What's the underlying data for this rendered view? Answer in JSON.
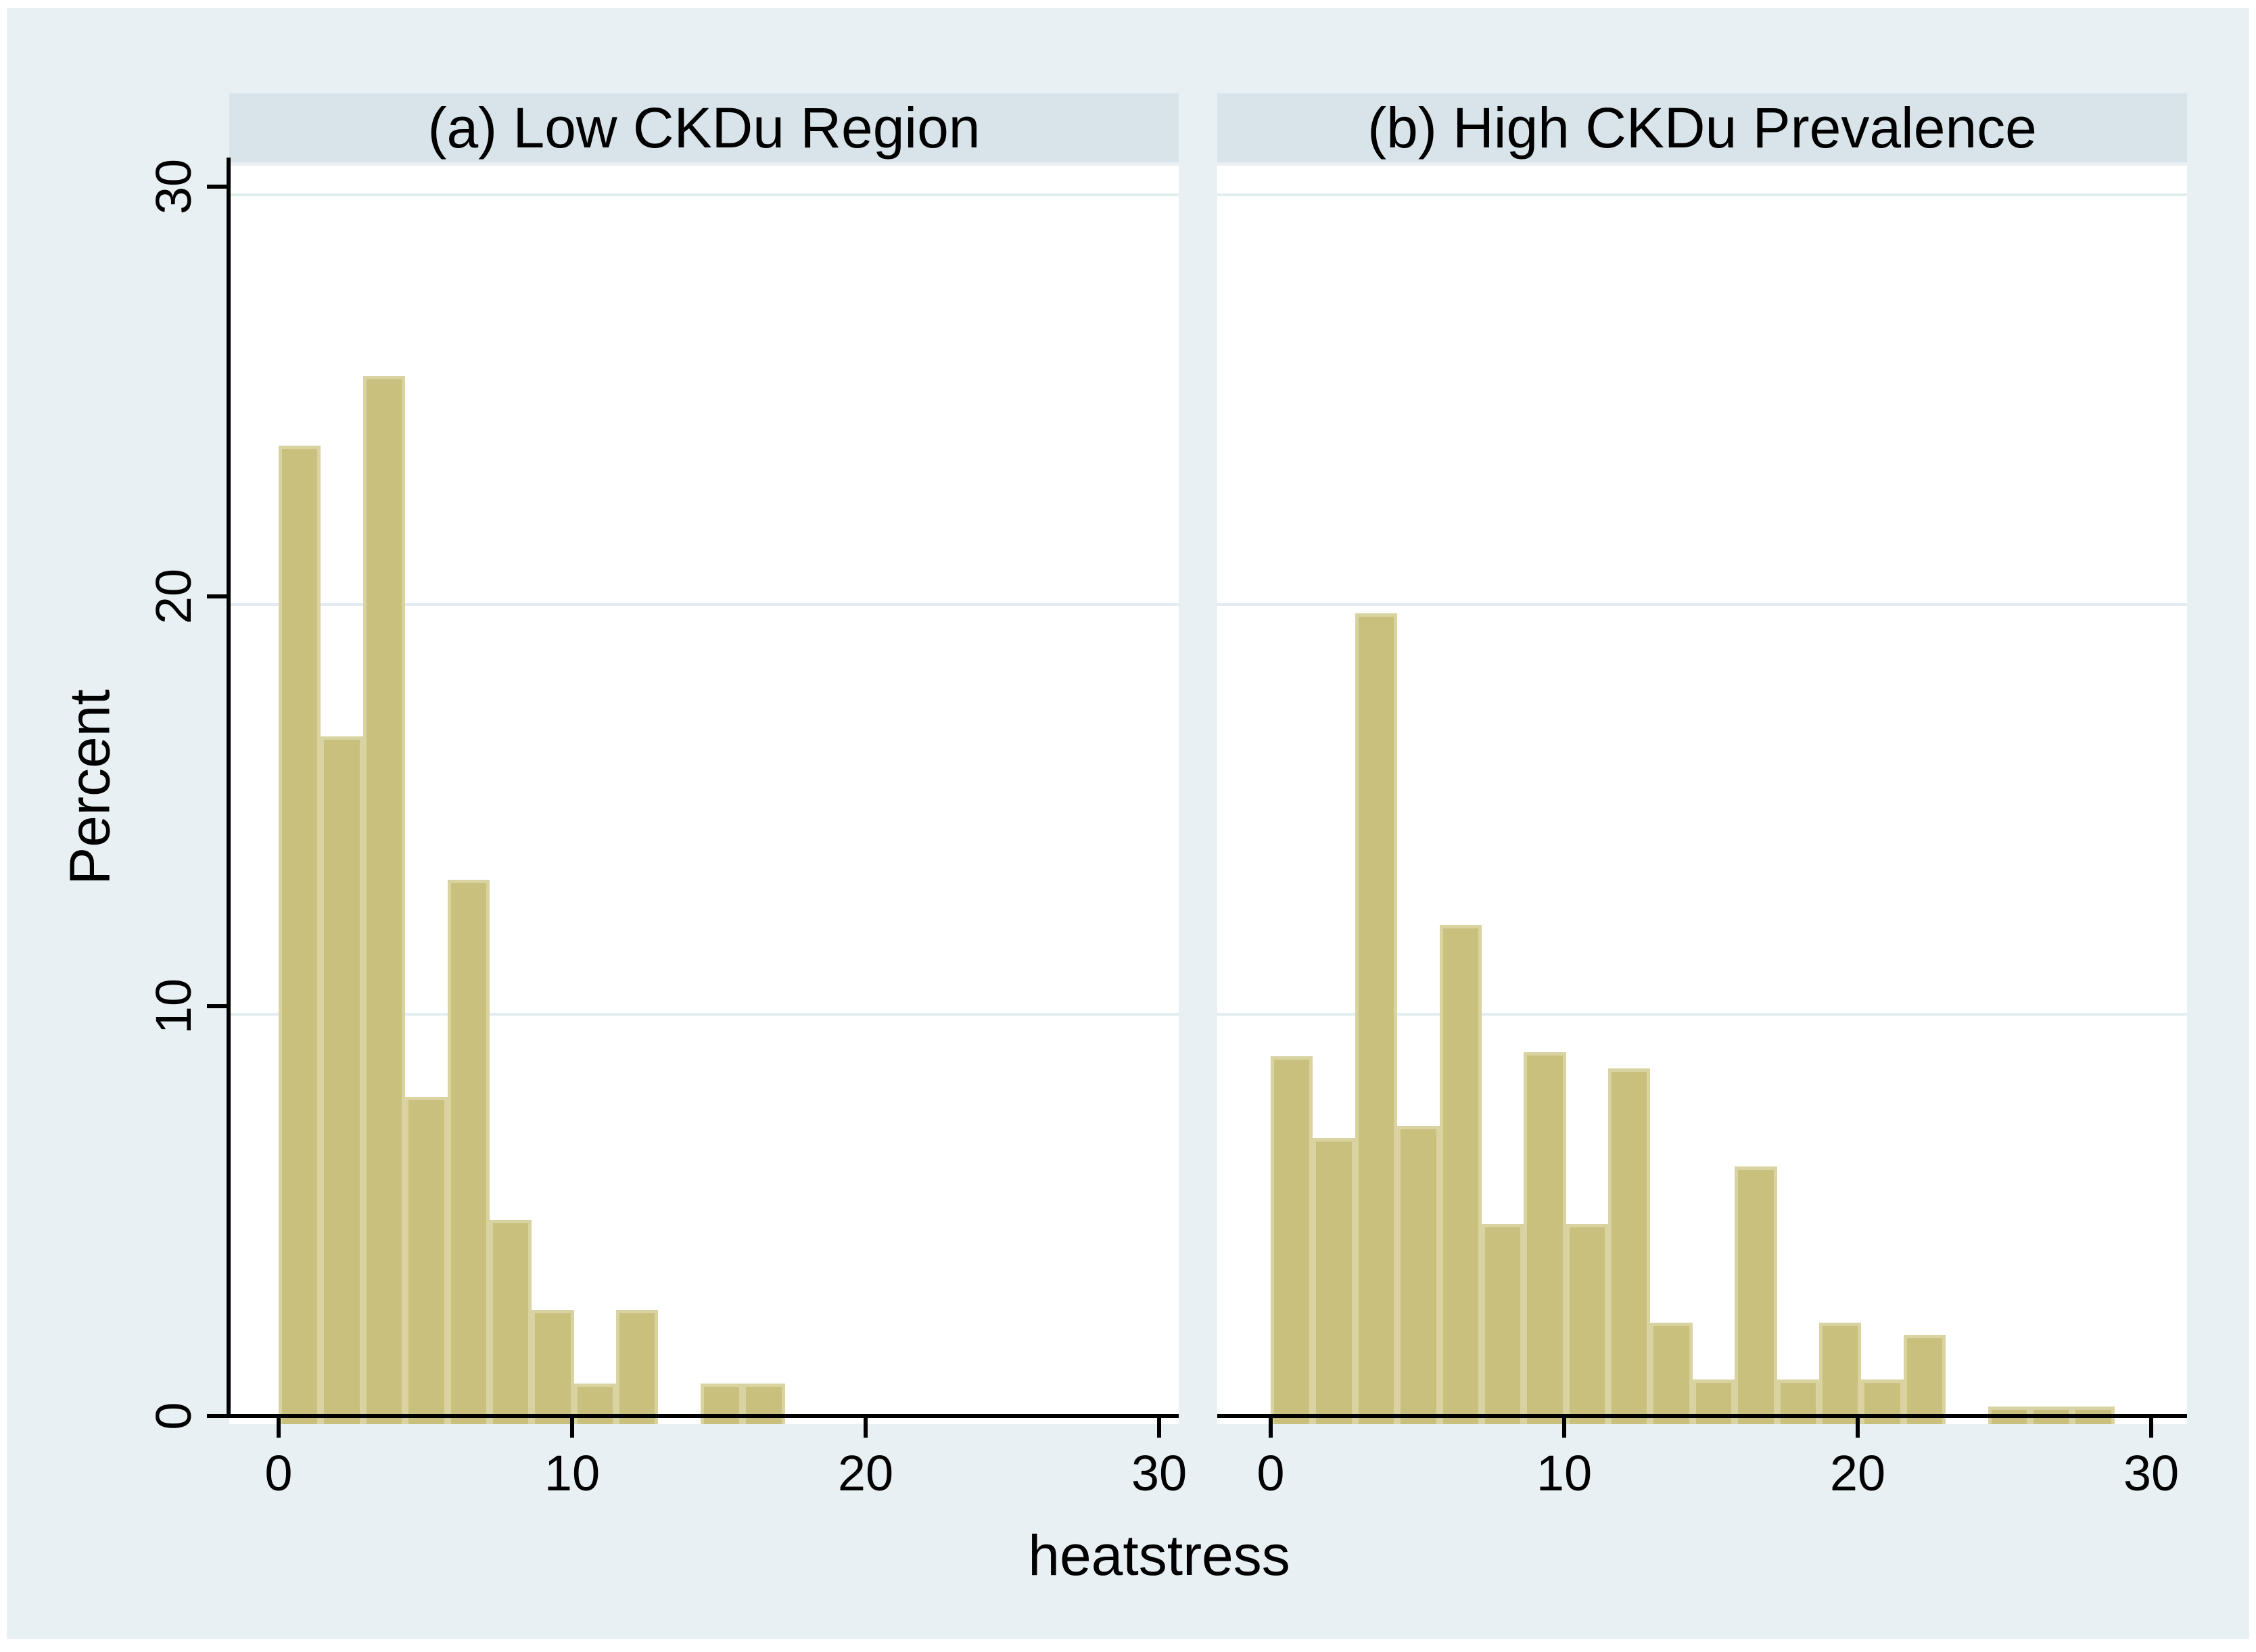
{
  "figure": {
    "panel_titles": [
      "(a) Low CKDu Region",
      "(b) High CKDu Prevalence"
    ],
    "ylabel": "Percent",
    "xlabel": "heatstress",
    "ytick_labels": [
      "0",
      "10",
      "20",
      "30"
    ],
    "xtick_labels": [
      "0",
      "10",
      "20",
      "30"
    ],
    "colors": {
      "page": "#ffffff",
      "canvas": "#e9f0f3",
      "title_band": "#d9e4ea",
      "plot_background": "#ffffff",
      "gridline": "#e3edf1",
      "bar_fill": "#c9c07d",
      "bar_edge": "#d8d3a1",
      "axis": "#000000",
      "text": "#000000"
    }
  },
  "chart_data": [
    {
      "type": "bar",
      "subtype": "histogram",
      "title": "(a) Low CKDu Region",
      "xlabel": "heatstress",
      "ylabel": "Percent",
      "xlim": [
        0,
        30
      ],
      "ylim": [
        0,
        30
      ],
      "xticks": [
        0,
        10,
        20,
        30
      ],
      "yticks": [
        0,
        10,
        20,
        30
      ],
      "grid": "horizontal gridlines at 10, 20, 30",
      "legend": "none",
      "bin_start": 0,
      "bin_width": 1.44,
      "bins_note": "20 equal-width bins from 0 to 28.75; values are percent of observations per bin",
      "values_percent": [
        23.8,
        16.7,
        25.5,
        7.9,
        13.2,
        4.9,
        2.7,
        0.9,
        2.7,
        0,
        0.9,
        0.9,
        0,
        0,
        0,
        0,
        0,
        0,
        0,
        0
      ]
    },
    {
      "type": "bar",
      "subtype": "histogram",
      "title": "(b) High CKDu Prevalence",
      "xlabel": "heatstress",
      "ylabel": "Percent",
      "xlim": [
        0,
        30
      ],
      "ylim": [
        0,
        30
      ],
      "xticks": [
        0,
        10,
        20,
        30
      ],
      "yticks": [
        0,
        10,
        20,
        30
      ],
      "grid": "horizontal gridlines at 10, 20, 30",
      "legend": "none",
      "bin_start": 0,
      "bin_width": 1.44,
      "bins_note": "20 equal-width bins from 0 to 28.75; values are percent of observations per bin",
      "values_percent": [
        8.9,
        6.9,
        19.7,
        7.2,
        12.1,
        4.8,
        9.0,
        4.8,
        8.6,
        2.4,
        1.0,
        6.2,
        1.0,
        2.4,
        1.0,
        2.1,
        0,
        0.35,
        0.35,
        0.35
      ]
    }
  ]
}
